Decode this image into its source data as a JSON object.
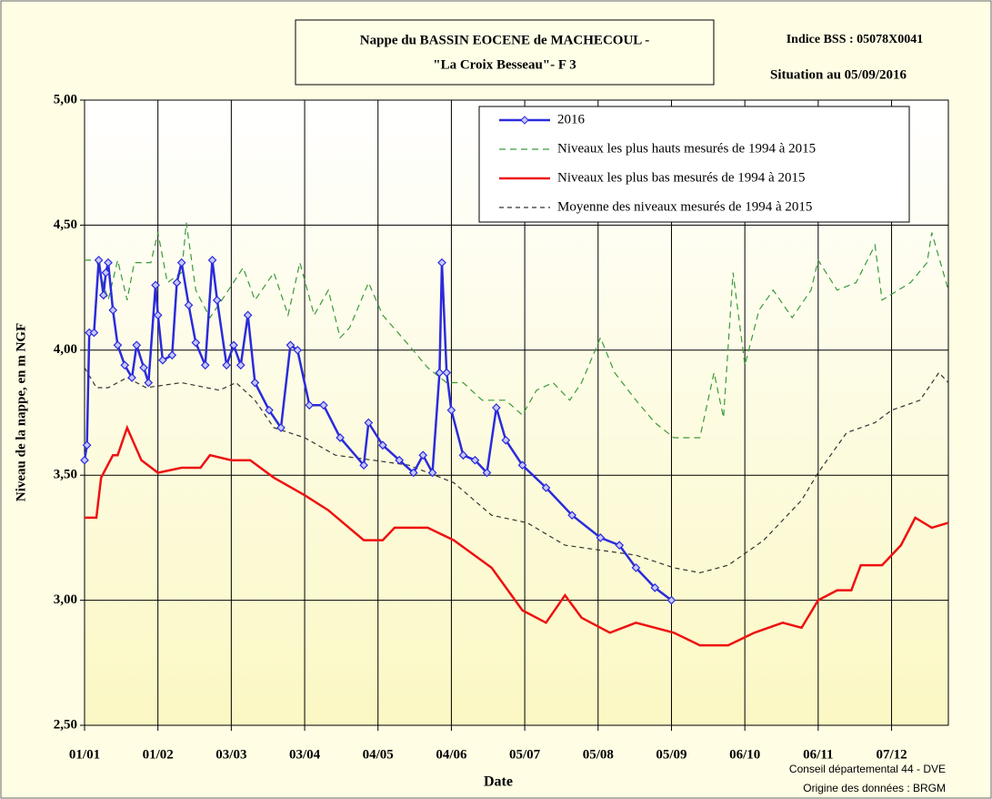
{
  "chart_data": {
    "type": "line",
    "title": [
      "Nappe du BASSIN EOCENE de MACHECOUL  -",
      "\"La Croix Besseau\"- F 3"
    ],
    "annotations": [
      "Indice BSS : 05078X0041",
      "Situation au 05/09/2016"
    ],
    "credits": [
      "Conseil départemental 44 - DVE",
      "Origine des données : BRGM"
    ],
    "x_label": "Date",
    "y_label": "Niveau de la nappe, en m NGF",
    "xlim": [
      0,
      365
    ],
    "xticks": [
      {
        "value": 0,
        "label": "01/01"
      },
      {
        "value": 31,
        "label": "01/02"
      },
      {
        "value": 62,
        "label": "03/03"
      },
      {
        "value": 93,
        "label": "03/04"
      },
      {
        "value": 124,
        "label": "04/05"
      },
      {
        "value": 155,
        "label": "04/06"
      },
      {
        "value": 186,
        "label": "05/07"
      },
      {
        "value": 217,
        "label": "05/08"
      },
      {
        "value": 248,
        "label": "05/09"
      },
      {
        "value": 279,
        "label": "06/10"
      },
      {
        "value": 310,
        "label": "06/11"
      },
      {
        "value": 341,
        "label": "07/12"
      }
    ],
    "ylim": [
      2.5,
      5
    ],
    "yticks": [
      {
        "value": 2.5,
        "label": "2,50"
      },
      {
        "value": 3,
        "label": "3,00"
      },
      {
        "value": 3.5,
        "label": "3,50"
      },
      {
        "value": 4,
        "label": "4,00"
      },
      {
        "value": 4.5,
        "label": "4,50"
      },
      {
        "value": 5,
        "label": "5,00"
      }
    ],
    "grid": true,
    "legend": "top-right",
    "series": [
      {
        "name": "2016",
        "color": "#2b2bdc",
        "dash": "none",
        "markers": true,
        "x": [
          0,
          1,
          2,
          4,
          6,
          8,
          9,
          10,
          12,
          14,
          17,
          20,
          22,
          25,
          27,
          30,
          31,
          33,
          37,
          39,
          41,
          44,
          47,
          51,
          54,
          56,
          60,
          63,
          66,
          69,
          72,
          78,
          83,
          87,
          90,
          95,
          101,
          108,
          118,
          120,
          126,
          133,
          139,
          143,
          147,
          150,
          151,
          153,
          155,
          160,
          165,
          170,
          174,
          178,
          185,
          195,
          206,
          218,
          226,
          233,
          241,
          248
        ],
        "values": [
          3.56,
          3.62,
          4.07,
          4.07,
          4.36,
          4.22,
          4.31,
          4.35,
          4.16,
          4.02,
          3.94,
          3.89,
          4.02,
          3.93,
          3.87,
          4.26,
          4.14,
          3.96,
          3.98,
          4.27,
          4.35,
          4.18,
          4.03,
          3.94,
          4.36,
          4.2,
          3.94,
          4.02,
          3.94,
          4.14,
          3.87,
          3.76,
          3.69,
          4.02,
          4,
          3.78,
          3.78,
          3.65,
          3.54,
          3.71,
          3.62,
          3.56,
          3.51,
          3.58,
          3.51,
          3.91,
          4.35,
          3.91,
          3.76,
          3.58,
          3.56,
          3.51,
          3.77,
          3.64,
          3.54,
          3.45,
          3.34,
          3.25,
          3.22,
          3.13,
          3.05,
          3
        ]
      },
      {
        "name": "Niveaux les plus hauts mesurés de 1994 à 2015",
        "color": "#3a9a3a",
        "dash": "7 5",
        "markers": false,
        "x": [
          0,
          5,
          10,
          14,
          18,
          21,
          28,
          31,
          35,
          41,
          43,
          47,
          53,
          58,
          67,
          72,
          80,
          86,
          91,
          97,
          103,
          108,
          112,
          120,
          126,
          137,
          145,
          153,
          160,
          168,
          178,
          185,
          191,
          198,
          205,
          210,
          218,
          224,
          233,
          241,
          249,
          260,
          266,
          270,
          274,
          279,
          285,
          291,
          299,
          307,
          310,
          318,
          326,
          334,
          337,
          349,
          356,
          358,
          365
        ],
        "values": [
          4.36,
          4.36,
          4.2,
          4.36,
          4.2,
          4.35,
          4.35,
          4.47,
          4.27,
          4.31,
          4.51,
          4.24,
          4.13,
          4.2,
          4.33,
          4.2,
          4.31,
          4.14,
          4.35,
          4.14,
          4.24,
          4.05,
          4.09,
          4.27,
          4.14,
          4.02,
          3.93,
          3.87,
          3.87,
          3.8,
          3.8,
          3.74,
          3.84,
          3.87,
          3.8,
          3.87,
          4.05,
          3.91,
          3.8,
          3.71,
          3.65,
          3.65,
          3.91,
          3.73,
          4.31,
          3.94,
          4.16,
          4.24,
          4.13,
          4.24,
          4.36,
          4.24,
          4.27,
          4.42,
          4.2,
          4.27,
          4.35,
          4.47,
          4.24
        ]
      },
      {
        "name": "Niveaux les plus bas mesurés de 1994 à 2015",
        "color": "#ee1111",
        "dash": "none",
        "markers": false,
        "x": [
          0,
          5,
          7,
          12,
          14,
          18,
          24,
          31,
          41,
          49,
          53,
          62,
          70,
          80,
          93,
          103,
          118,
          126,
          131,
          145,
          156,
          172,
          185,
          195,
          203,
          210,
          222,
          233,
          249,
          260,
          272,
          283,
          295,
          303,
          310,
          318,
          324,
          328,
          337,
          345,
          351,
          358,
          365
        ],
        "values": [
          3.33,
          3.33,
          3.49,
          3.58,
          3.58,
          3.69,
          3.56,
          3.51,
          3.53,
          3.53,
          3.58,
          3.56,
          3.56,
          3.49,
          3.42,
          3.36,
          3.24,
          3.24,
          3.29,
          3.29,
          3.24,
          3.13,
          2.96,
          2.91,
          3.02,
          2.93,
          2.87,
          2.91,
          2.87,
          2.82,
          2.82,
          2.87,
          2.91,
          2.89,
          3,
          3.04,
          3.04,
          3.14,
          3.14,
          3.22,
          3.33,
          3.29,
          3.31
        ]
      },
      {
        "name": "Moyenne des niveaux mesurés de 1994 à 2015",
        "color": "#333333",
        "dash": "5 4",
        "markers": false,
        "x": [
          0,
          5,
          10,
          18,
          26,
          41,
          57,
          64,
          72,
          80,
          93,
          106,
          122,
          137,
          156,
          172,
          187,
          203,
          218,
          233,
          249,
          260,
          272,
          287,
          303,
          310,
          322,
          334,
          341,
          353,
          361,
          365
        ],
        "values": [
          3.93,
          3.85,
          3.85,
          3.89,
          3.85,
          3.87,
          3.84,
          3.87,
          3.8,
          3.69,
          3.65,
          3.58,
          3.56,
          3.54,
          3.47,
          3.34,
          3.31,
          3.22,
          3.2,
          3.18,
          3.13,
          3.11,
          3.14,
          3.24,
          3.4,
          3.51,
          3.67,
          3.71,
          3.76,
          3.8,
          3.91,
          3.87
        ]
      }
    ]
  }
}
